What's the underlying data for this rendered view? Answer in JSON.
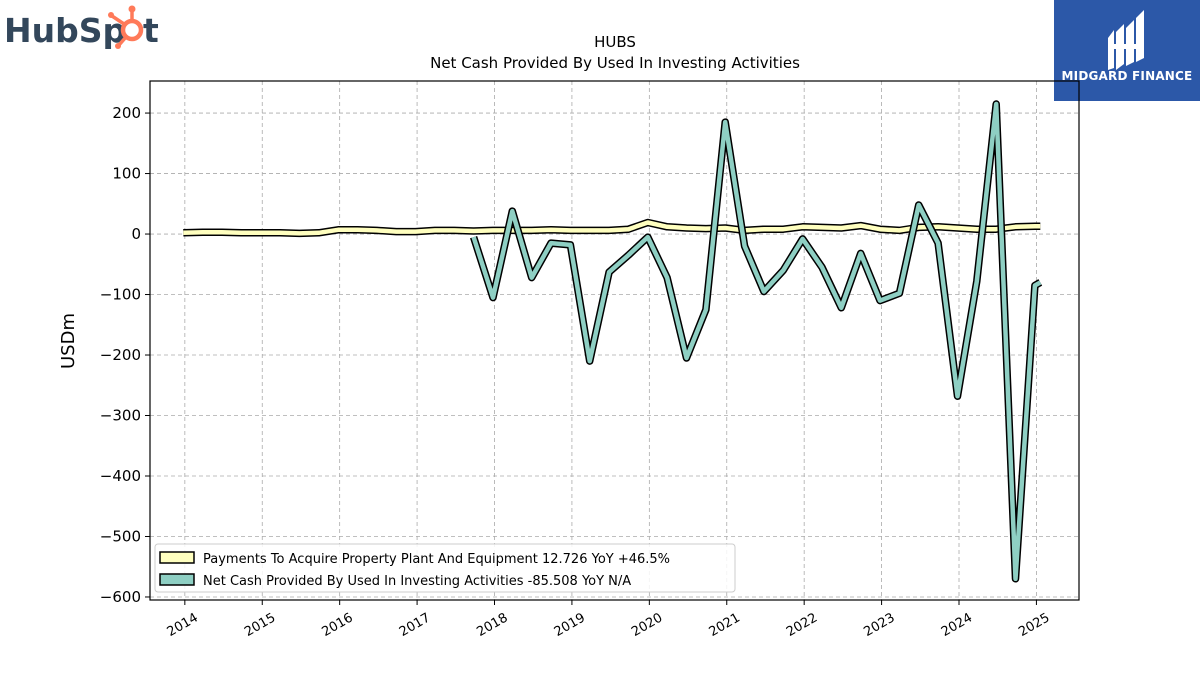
{
  "logos": {
    "left_text": "HubSpot",
    "right_text": "MIDGARD FINANCE"
  },
  "chart_data": {
    "type": "line",
    "title": "HUBS",
    "subtitle": "Net Cash Provided By Used In Investing Activities",
    "ylabel": "USDm",
    "xlabel": "",
    "ylim": [
      -605,
      253
    ],
    "xlim": [
      2013.55,
      2025.55
    ],
    "yticks": [
      200,
      100,
      0,
      -100,
      -200,
      -300,
      -400,
      -500,
      -600
    ],
    "ytick_labels": [
      "200",
      "100",
      "0",
      "−100",
      "−200",
      "−300",
      "−400",
      "−500",
      "−600"
    ],
    "xticks": [
      2014,
      2015,
      2016,
      2017,
      2018,
      2019,
      2020,
      2021,
      2022,
      2023,
      2024,
      2025
    ],
    "xtick_labels": [
      "2014",
      "2015",
      "2016",
      "2017",
      "2018",
      "2019",
      "2020",
      "2021",
      "2022",
      "2023",
      "2024",
      "2025"
    ],
    "grid": true,
    "legend_position": "lower-left",
    "series": [
      {
        "name": "Payments To Acquire Property Plant And Equipment  12.726 YoY +46.5%",
        "color": "#ffffbf",
        "x": [
          2013.98,
          2014.23,
          2014.48,
          2014.73,
          2014.98,
          2015.23,
          2015.48,
          2015.73,
          2015.98,
          2016.23,
          2016.48,
          2016.73,
          2016.98,
          2017.23,
          2017.48,
          2017.73,
          2017.98,
          2018.23,
          2018.48,
          2018.73,
          2018.98,
          2019.23,
          2019.48,
          2019.73,
          2019.98,
          2020.23,
          2020.48,
          2020.73,
          2020.98,
          2021.23,
          2021.48,
          2021.73,
          2021.98,
          2022.23,
          2022.48,
          2022.73,
          2022.98,
          2023.23,
          2023.48,
          2023.73,
          2023.98,
          2024.23,
          2024.48,
          2024.73,
          2024.98,
          2025.05
        ],
        "y": [
          2,
          3,
          3,
          2,
          2,
          2,
          1,
          2,
          7,
          7,
          6,
          4,
          4,
          6,
          6,
          5,
          6,
          6,
          6,
          7,
          6,
          6,
          6,
          8,
          19,
          12,
          10,
          9,
          10,
          6,
          8,
          8,
          12,
          11,
          10,
          14,
          8,
          6,
          11,
          12,
          10,
          8,
          8,
          12,
          13,
          13
        ]
      },
      {
        "name": "Net Cash Provided By Used In Investing Activities  -85.508 YoY N/A",
        "color": "#8ecfc3",
        "x": [
          2017.73,
          2017.98,
          2018.23,
          2018.48,
          2018.73,
          2018.98,
          2019.23,
          2019.48,
          2019.73,
          2019.98,
          2020.23,
          2020.48,
          2020.73,
          2020.98,
          2021.23,
          2021.48,
          2021.73,
          2021.98,
          2022.23,
          2022.48,
          2022.73,
          2022.98,
          2023.23,
          2023.48,
          2023.73,
          2023.98,
          2024.23,
          2024.48,
          2024.73,
          2024.98,
          2025.05
        ],
        "y": [
          -5,
          -105,
          38,
          -72,
          -15,
          -18,
          -210,
          -63,
          -35,
          -5,
          -72,
          -205,
          -125,
          185,
          -20,
          -95,
          -60,
          -8,
          -55,
          -122,
          -32,
          -110,
          -98,
          48,
          -15,
          -268,
          -78,
          215,
          -570,
          -85,
          -80
        ]
      }
    ]
  }
}
